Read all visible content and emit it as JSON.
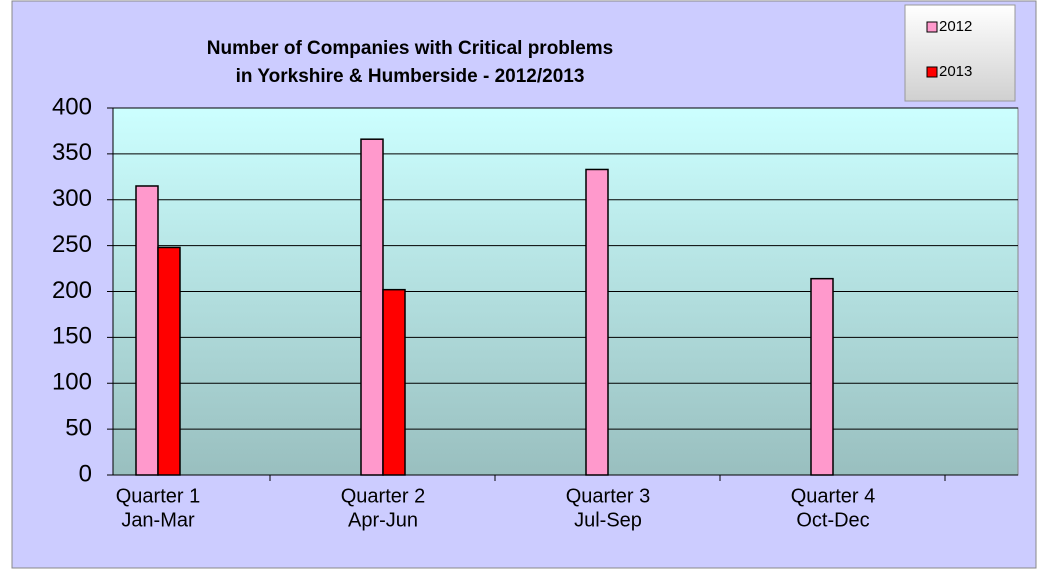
{
  "chart_data": {
    "type": "bar",
    "title": [
      "Number of Companies with Critical problems",
      "in Yorkshire & Humberside - 2012/2013"
    ],
    "categories": [
      [
        "Quarter 1",
        "Jan-Mar"
      ],
      [
        "Quarter 2",
        "Apr-Jun"
      ],
      [
        "Quarter 3",
        "Jul-Sep"
      ],
      [
        "Quarter 4",
        "Oct-Dec"
      ]
    ],
    "series": [
      {
        "name": "2012",
        "color": "#ff99cc",
        "values": [
          315,
          366,
          333,
          214
        ]
      },
      {
        "name": "2013",
        "color": "#ff0000",
        "values": [
          248,
          202,
          null,
          null
        ]
      }
    ],
    "ylim": [
      0,
      400
    ],
    "yticks": [
      0,
      50,
      100,
      150,
      200,
      250,
      300,
      350,
      400
    ],
    "grid": true,
    "legend": "top-right"
  }
}
